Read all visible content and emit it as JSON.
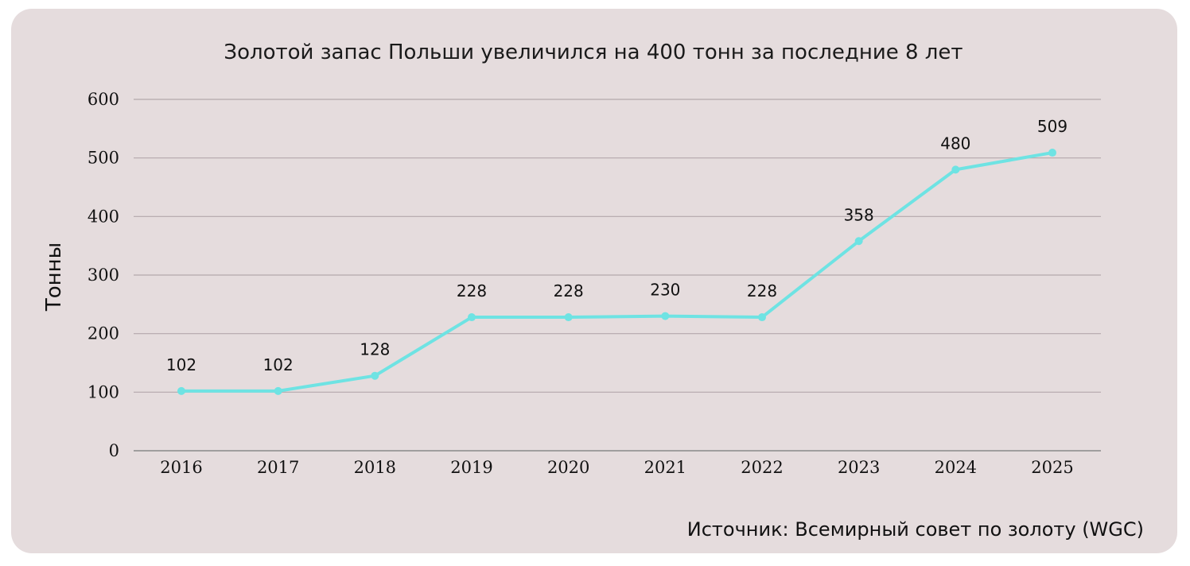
{
  "source_text": "Источник: Всемирный совет по золоту (WGC)",
  "colors": {
    "background": "#e5dcdd",
    "line": "#6ee3e3",
    "grid": "#b3a8ab",
    "axis": "#8a8a8a"
  },
  "chart_data": {
    "type": "line",
    "title": "Золотой запас Польши увеличился на 400 тонн за последние 8 лет",
    "xlabel": "",
    "ylabel": "Тонны",
    "categories": [
      "2016",
      "2017",
      "2018",
      "2019",
      "2020",
      "2021",
      "2022",
      "2023",
      "2024",
      "2025"
    ],
    "values": [
      102,
      102,
      128,
      228,
      228,
      230,
      228,
      358,
      480,
      509
    ],
    "ylim": [
      0,
      600
    ],
    "yticks": [
      0,
      100,
      200,
      300,
      400,
      500,
      600
    ],
    "grid": true,
    "legend": "none",
    "data_labels": true
  }
}
